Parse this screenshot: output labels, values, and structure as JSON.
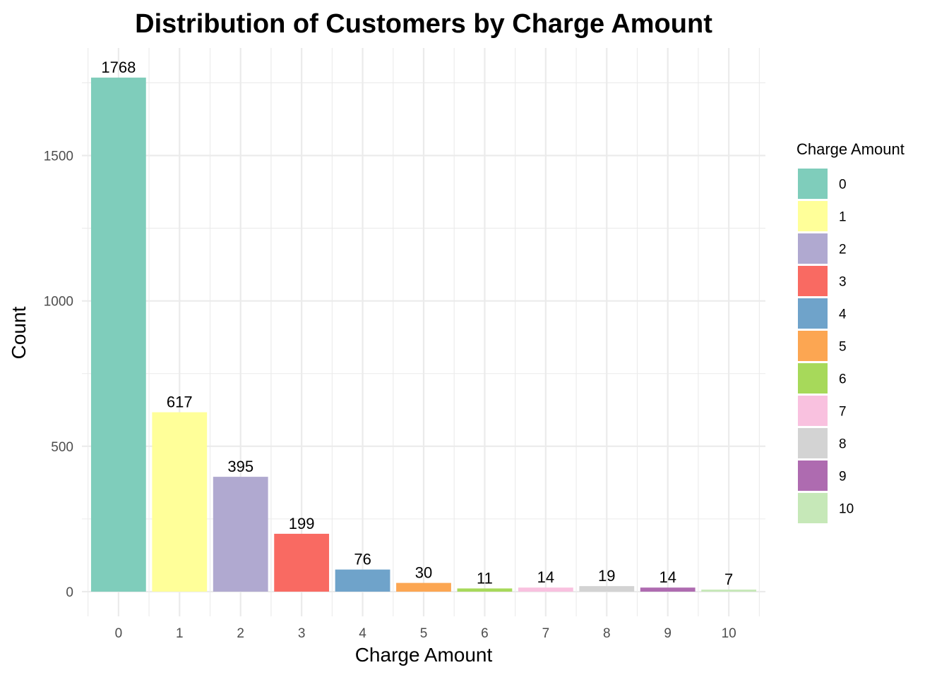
{
  "chart_data": {
    "type": "bar",
    "title": "Distribution of Customers by Charge Amount",
    "xlabel": "Charge Amount",
    "ylabel": "Count",
    "categories": [
      "0",
      "1",
      "2",
      "3",
      "4",
      "5",
      "6",
      "7",
      "8",
      "9",
      "10"
    ],
    "values": [
      1768,
      617,
      395,
      199,
      76,
      30,
      11,
      14,
      19,
      14,
      7
    ],
    "data_labels": [
      "1768",
      "617",
      "395",
      "199",
      "76",
      "30",
      "11",
      "14",
      "19",
      "14",
      "7"
    ],
    "colors": [
      "#7FCDBB",
      "#FFFF99",
      "#B0A9D0",
      "#F96A62",
      "#6FA3CA",
      "#FCA652",
      "#A7D95A",
      "#F9C1DF",
      "#D3D3D3",
      "#AE6BB0",
      "#C6E8B8"
    ],
    "ylim": [
      -85,
      1870
    ],
    "y_ticks": [
      0,
      500,
      1000,
      1500
    ],
    "y_tick_labels": [
      "0",
      "500",
      "1000",
      "1500"
    ],
    "grid": true,
    "legend": {
      "title": "Charge Amount",
      "position": "right",
      "items": [
        "0",
        "1",
        "2",
        "3",
        "4",
        "5",
        "6",
        "7",
        "8",
        "9",
        "10"
      ]
    }
  }
}
